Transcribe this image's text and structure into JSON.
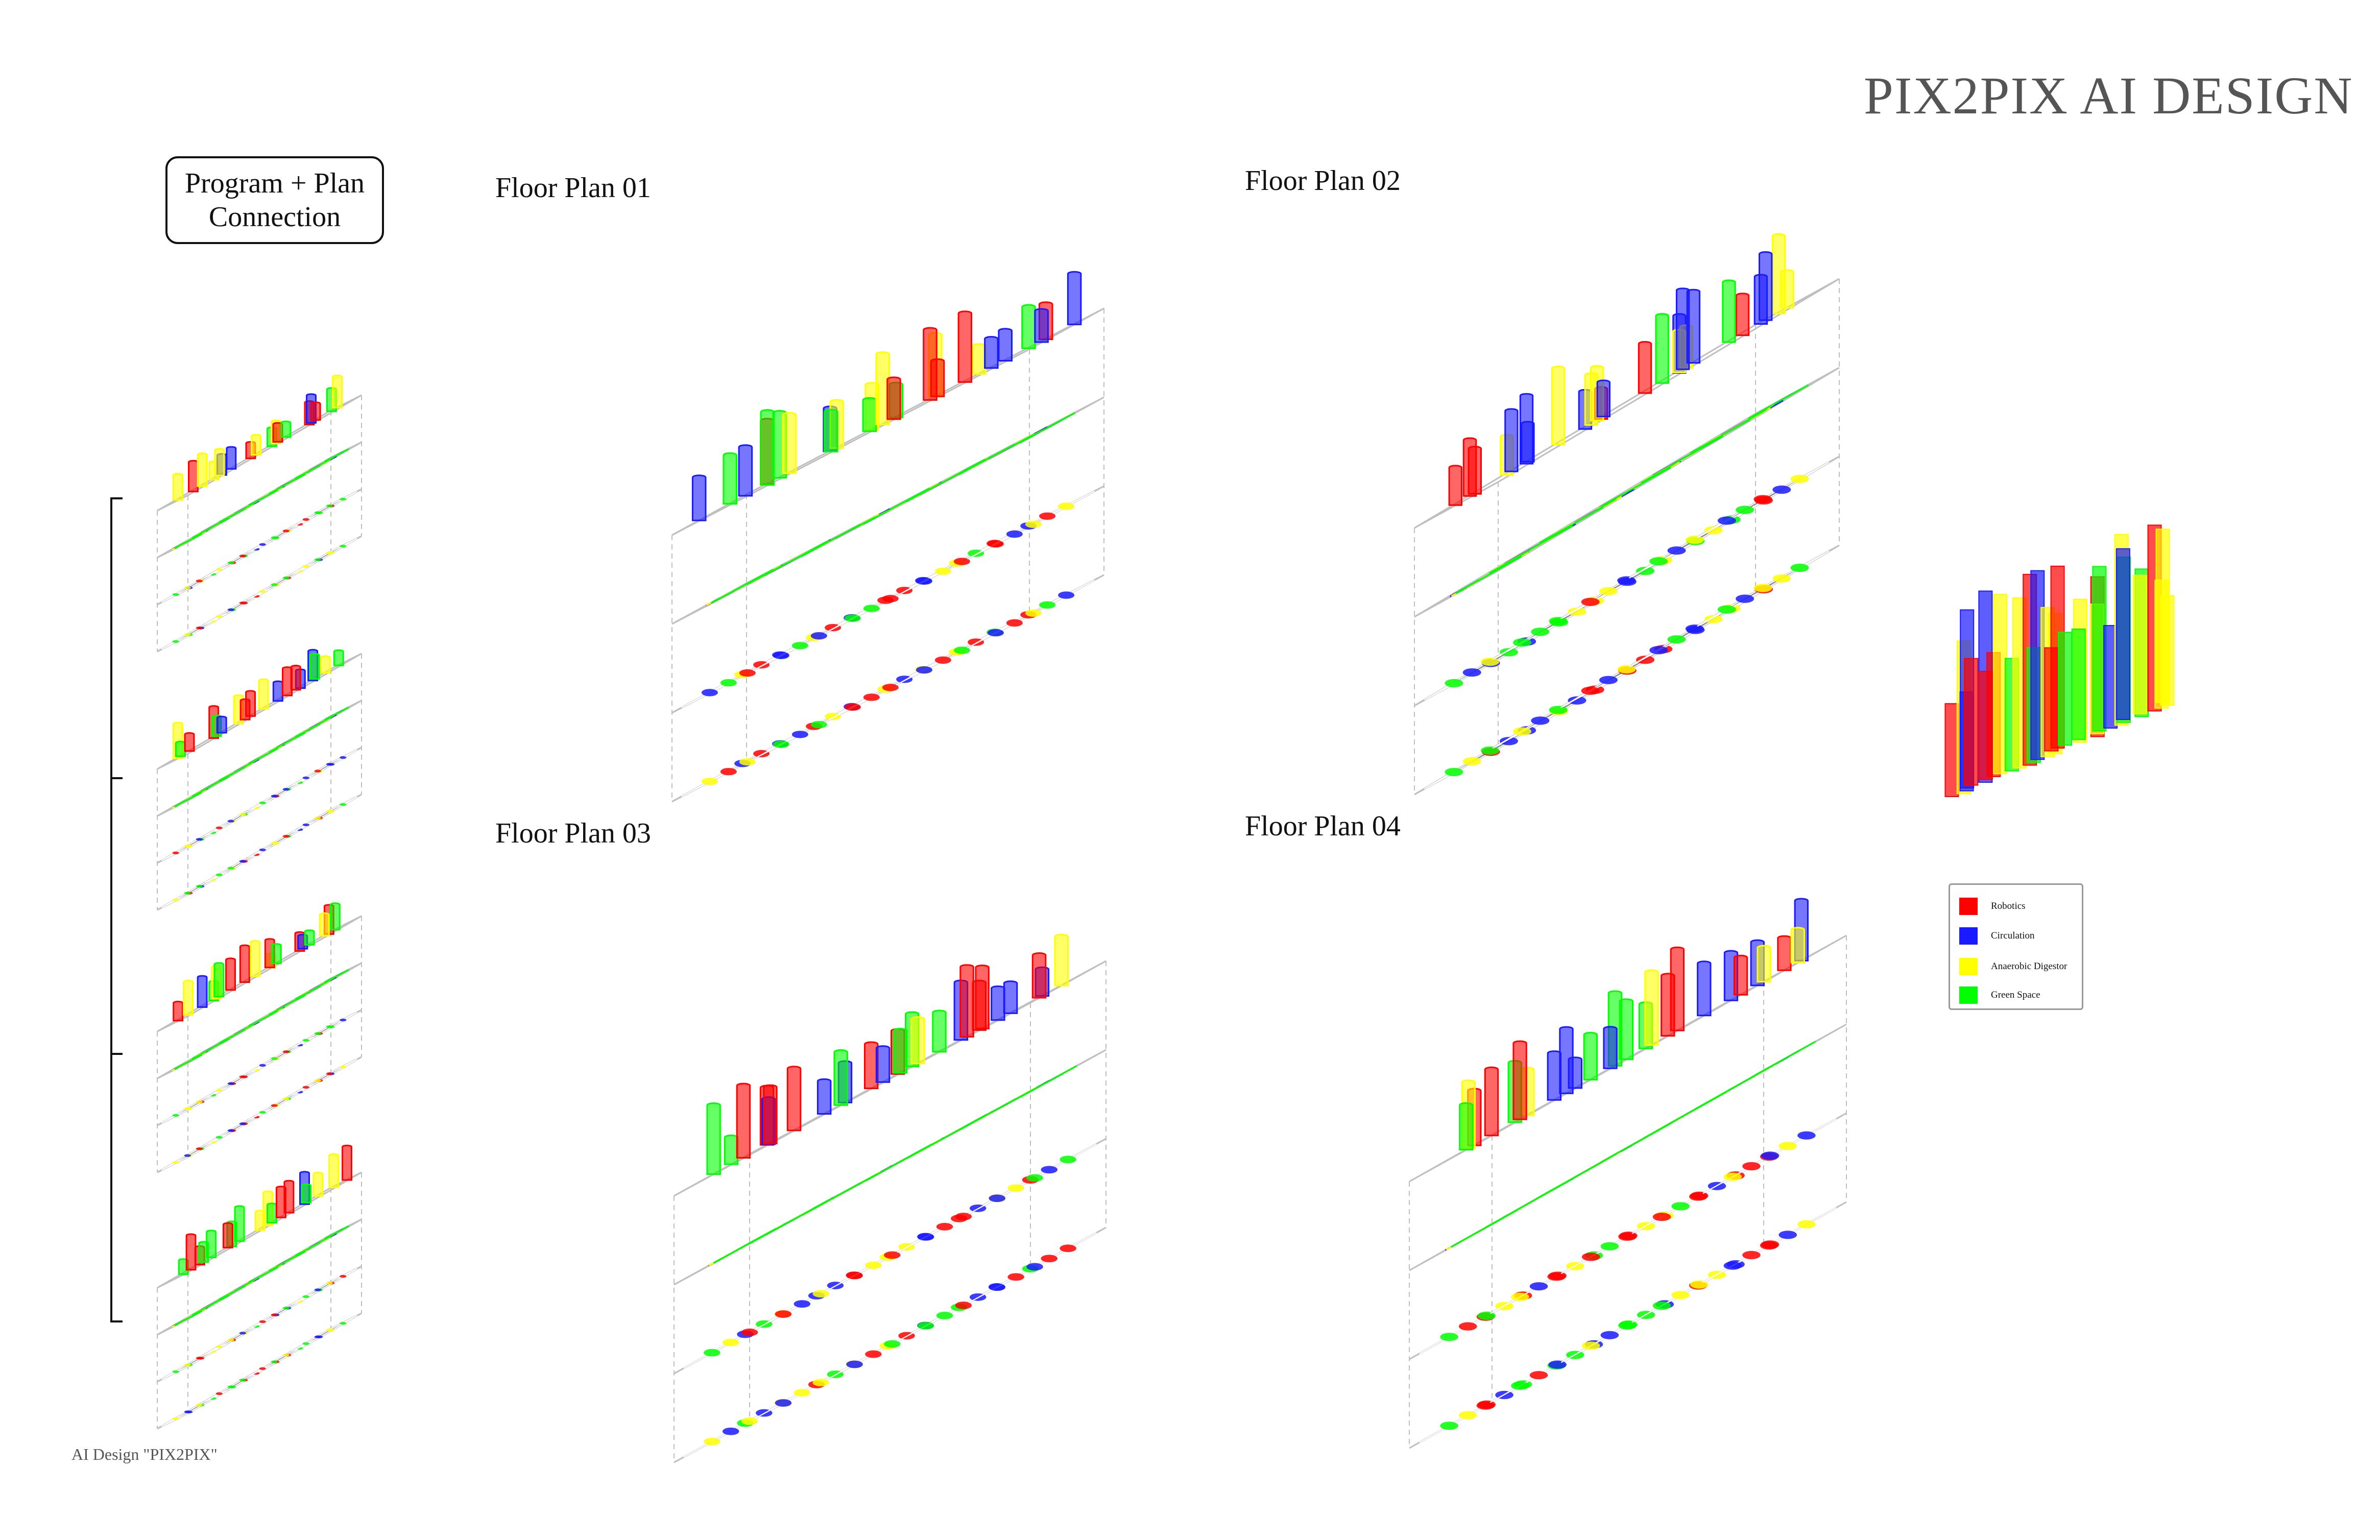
{
  "title": "PIX2PIX AI DESIGN",
  "program_box": {
    "line1": "Program + Plan",
    "line2": "Connection"
  },
  "plans": [
    {
      "title": "Floor Plan 01"
    },
    {
      "title": "Floor Plan 02"
    },
    {
      "title": "Floor Plan 03"
    },
    {
      "title": "Floor Plan 04"
    }
  ],
  "legend": [
    {
      "label": "Robotics",
      "color": "#ff0000"
    },
    {
      "label": "Circulation",
      "color": "#1a1aff"
    },
    {
      "label": "Anaerobic Digestor",
      "color": "#ffff00"
    },
    {
      "label": "Green Space",
      "color": "#00ff00"
    }
  ],
  "caption": "AI Design \"PIX2PIX\"",
  "colors": {
    "grid_gray": "#8a8a8a",
    "slab_line": "#bfbfbf",
    "bracket": "#111111"
  }
}
